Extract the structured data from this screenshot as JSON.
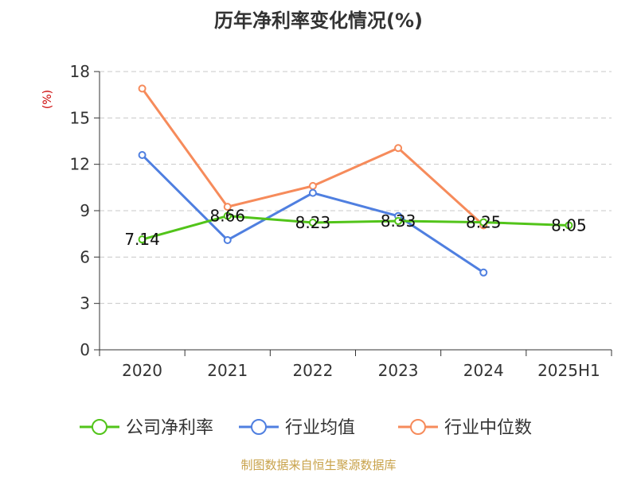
{
  "chart_data": {
    "type": "line",
    "title": "历年净利率变化情况(%)",
    "xlabel": "",
    "ylabel": "(%)",
    "categories": [
      "2020",
      "2021",
      "2022",
      "2023",
      "2024",
      "2025H1"
    ],
    "ylim": [
      0,
      18
    ],
    "yticks": [
      0,
      3,
      6,
      9,
      12,
      15,
      18
    ],
    "grid": true,
    "legend_position": "bottom",
    "series": [
      {
        "name": "公司净利率",
        "color": "#52c41a",
        "values": [
          7.14,
          8.66,
          8.23,
          8.33,
          8.25,
          8.05
        ],
        "labels": [
          "7.14",
          "8.66",
          "8.23",
          "8.33",
          "8.25",
          "8.05"
        ],
        "show_labels": true
      },
      {
        "name": "行业均值",
        "color": "#4f7fe0",
        "values": [
          12.6,
          7.1,
          10.15,
          8.65,
          5.0,
          null
        ],
        "show_labels": false
      },
      {
        "name": "行业中位数",
        "color": "#f68b5b",
        "values": [
          16.9,
          9.25,
          10.6,
          13.05,
          8.05,
          null
        ],
        "show_labels": false
      }
    ]
  },
  "ylabel_color": "#cc0000",
  "source": {
    "text": "制图数据来自恒生聚源数据库",
    "color": "#c8a24a"
  }
}
